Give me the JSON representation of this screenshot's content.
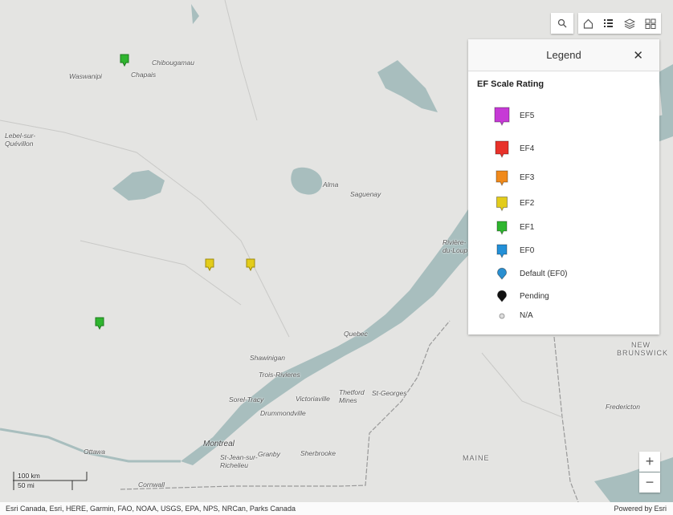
{
  "map_labels": [
    "Waswanipi",
    "Chapais",
    "Chibougamau",
    "Lebel-sur-Quévillon",
    "Alma",
    "Saguenay",
    "Rivière-du-Loup",
    "Quebec",
    "Shawinigan",
    "Trois-Rivieres",
    "Sorel-Tracy",
    "Victoriaville",
    "Thetford Mines",
    "St-Georges",
    "Drummondville",
    "Montreal",
    "Granby",
    "Sherbrooke",
    "St-Jean-sur-Richelieu",
    "Ottawa",
    "Cornwall",
    "MAINE",
    "NEW BRUNSWICK",
    "Fredericton"
  ],
  "legend": {
    "header": "Legend",
    "title": "EF Scale Rating",
    "items": [
      {
        "label": "EF5",
        "color": "#c63ad6"
      },
      {
        "label": "EF4",
        "color": "#e8322a"
      },
      {
        "label": "EF3",
        "color": "#f08a1c"
      },
      {
        "label": "EF2",
        "color": "#e3cc1a"
      },
      {
        "label": "EF1",
        "color": "#2fb52f"
      },
      {
        "label": "EF0",
        "color": "#2390d8"
      },
      {
        "label": "Default (EF0)",
        "color": "#2a8fd0"
      },
      {
        "label": "Pending",
        "color": "#111111"
      },
      {
        "label": "N/A",
        "color": "#dddddd"
      }
    ]
  },
  "scale": {
    "km": "100 km",
    "mi": "50 mi"
  },
  "attribution": "Esri Canada, Esri, HERE, Garmin, FAO, NOAA, USGS, EPA, NPS, NRCan, Parks Canada",
  "powered_by": "Powered by Esri"
}
